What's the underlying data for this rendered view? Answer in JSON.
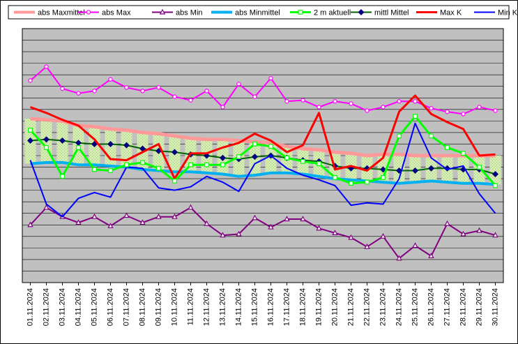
{
  "chart_data": {
    "type": "line",
    "title": "",
    "xlabel": "",
    "ylabel": "",
    "ylim": [
      0,
      22
    ],
    "grid": true,
    "legend_position": "top",
    "colors": {
      "plot_background": "#c0c0c0",
      "band_fill": "#d7ecb4",
      "grid": "#000000"
    },
    "categories": [
      "01.11.2024",
      "02.11.2024",
      "03.11.2024",
      "04.11.2024",
      "05.11.2024",
      "06.11.2024",
      "07.11.2024",
      "08.11.2024",
      "09.11.2024",
      "10.11.2024",
      "11.11.2024",
      "12.11.2024",
      "13.11.2024",
      "14.11.2024",
      "15.11.2024",
      "16.11.2024",
      "17.11.2024",
      "18.11.2024",
      "19.11.2024",
      "20.11.2024",
      "21.11.2024",
      "22.11.2024",
      "23.11.2024",
      "24.11.2024",
      "25.11.2024",
      "26.11.2024",
      "27.11.2024",
      "28.11.2024",
      "29.11.2024",
      "30.11.2024"
    ],
    "series": [
      {
        "name": "abs Maxmittel",
        "color": "#ff9999",
        "marker": "none",
        "width": 5,
        "values": [
          14.2,
          14.1,
          14.0,
          13.6,
          13.5,
          13.3,
          13.2,
          13.0,
          12.9,
          12.7,
          12.5,
          12.4,
          12.4,
          12.3,
          12.2,
          12.1,
          11.8,
          11.6,
          11.5,
          11.3,
          11.2,
          11.0,
          11.1,
          11.1,
          11.0,
          11.0,
          11.0,
          11.0,
          11.0,
          11.0
        ]
      },
      {
        "name": "abs Max",
        "color": "#ff00ff",
        "marker": "circle",
        "width": 2,
        "values": [
          17.5,
          18.7,
          16.8,
          16.4,
          16.6,
          17.6,
          16.9,
          16.6,
          16.9,
          16.1,
          15.8,
          16.6,
          15.2,
          17.2,
          16.1,
          17.7,
          15.7,
          15.8,
          15.2,
          15.7,
          15.5,
          14.9,
          15.2,
          15.7,
          15.7,
          15.1,
          14.8,
          14.6,
          15.2,
          14.9
        ]
      },
      {
        "name": "abs Min",
        "color": "#800080",
        "marker": "triangle",
        "width": 2,
        "values": [
          5.0,
          6.5,
          5.7,
          5.2,
          5.7,
          4.9,
          5.8,
          5.2,
          5.7,
          5.7,
          6.5,
          5.1,
          4.1,
          4.2,
          5.6,
          4.8,
          5.5,
          5.5,
          4.7,
          4.3,
          3.9,
          3.1,
          4.0,
          2.1,
          3.2,
          2.3,
          5.1,
          4.2,
          4.5,
          4.1
        ]
      },
      {
        "name": "abs Minmittel",
        "color": "#00b0f0",
        "marker": "none",
        "width": 4,
        "values": [
          10.3,
          10.4,
          10.4,
          10.2,
          10.2,
          10.1,
          10.0,
          9.8,
          9.7,
          9.6,
          9.6,
          9.5,
          9.4,
          9.2,
          9.3,
          9.5,
          9.5,
          9.4,
          9.2,
          9.0,
          8.9,
          8.8,
          8.7,
          8.6,
          8.7,
          8.8,
          8.7,
          8.6,
          8.6,
          8.5
        ]
      },
      {
        "name": "2 m aktuell",
        "color": "#00ff00",
        "marker": "square",
        "width": 3,
        "values": [
          13.2,
          11.7,
          9.2,
          11.7,
          9.8,
          9.7,
          10.2,
          10.4,
          9.9,
          8.8,
          10.2,
          10.2,
          10.2,
          10.9,
          12.0,
          11.8,
          10.8,
          10.5,
          10.3,
          9.1,
          8.6,
          8.7,
          9.1,
          12.7,
          14.4,
          12.7,
          11.7,
          11.2,
          10.0,
          8.4
        ]
      },
      {
        "name": "mittl Mittel",
        "color": "#006400",
        "marker": "diamond",
        "width": 2,
        "values": [
          12.3,
          12.4,
          12.3,
          12.1,
          12.0,
          12.0,
          11.9,
          11.6,
          11.4,
          11.3,
          11.1,
          11.0,
          10.8,
          10.7,
          10.9,
          11.0,
          10.8,
          10.6,
          10.5,
          10.1,
          9.9,
          9.9,
          9.8,
          9.7,
          9.7,
          9.9,
          9.9,
          9.8,
          9.8,
          9.4
        ]
      },
      {
        "name": "Max K",
        "color": "#ff0000",
        "marker": "none",
        "width": 3,
        "values": [
          15.2,
          14.7,
          14.1,
          13.6,
          12.4,
          10.7,
          10.6,
          11.3,
          12.0,
          9.0,
          11.2,
          11.2,
          11.7,
          12.1,
          12.9,
          12.3,
          11.3,
          11.9,
          14.7,
          9.8,
          10.1,
          9.7,
          10.8,
          14.8,
          16.2,
          14.6,
          13.9,
          13.3,
          11.0,
          11.1
        ]
      },
      {
        "name": "Min K",
        "color": "#0000ff",
        "marker": "none",
        "width": 2,
        "values": [
          10.6,
          6.8,
          5.7,
          7.3,
          7.8,
          7.4,
          10.0,
          9.9,
          8.2,
          8.0,
          8.3,
          9.2,
          8.7,
          7.9,
          10.3,
          11.0,
          9.9,
          9.3,
          8.9,
          8.4,
          6.7,
          6.9,
          6.8,
          9.0,
          13.8,
          10.8,
          9.8,
          10.1,
          7.7,
          6.0
        ]
      }
    ]
  }
}
